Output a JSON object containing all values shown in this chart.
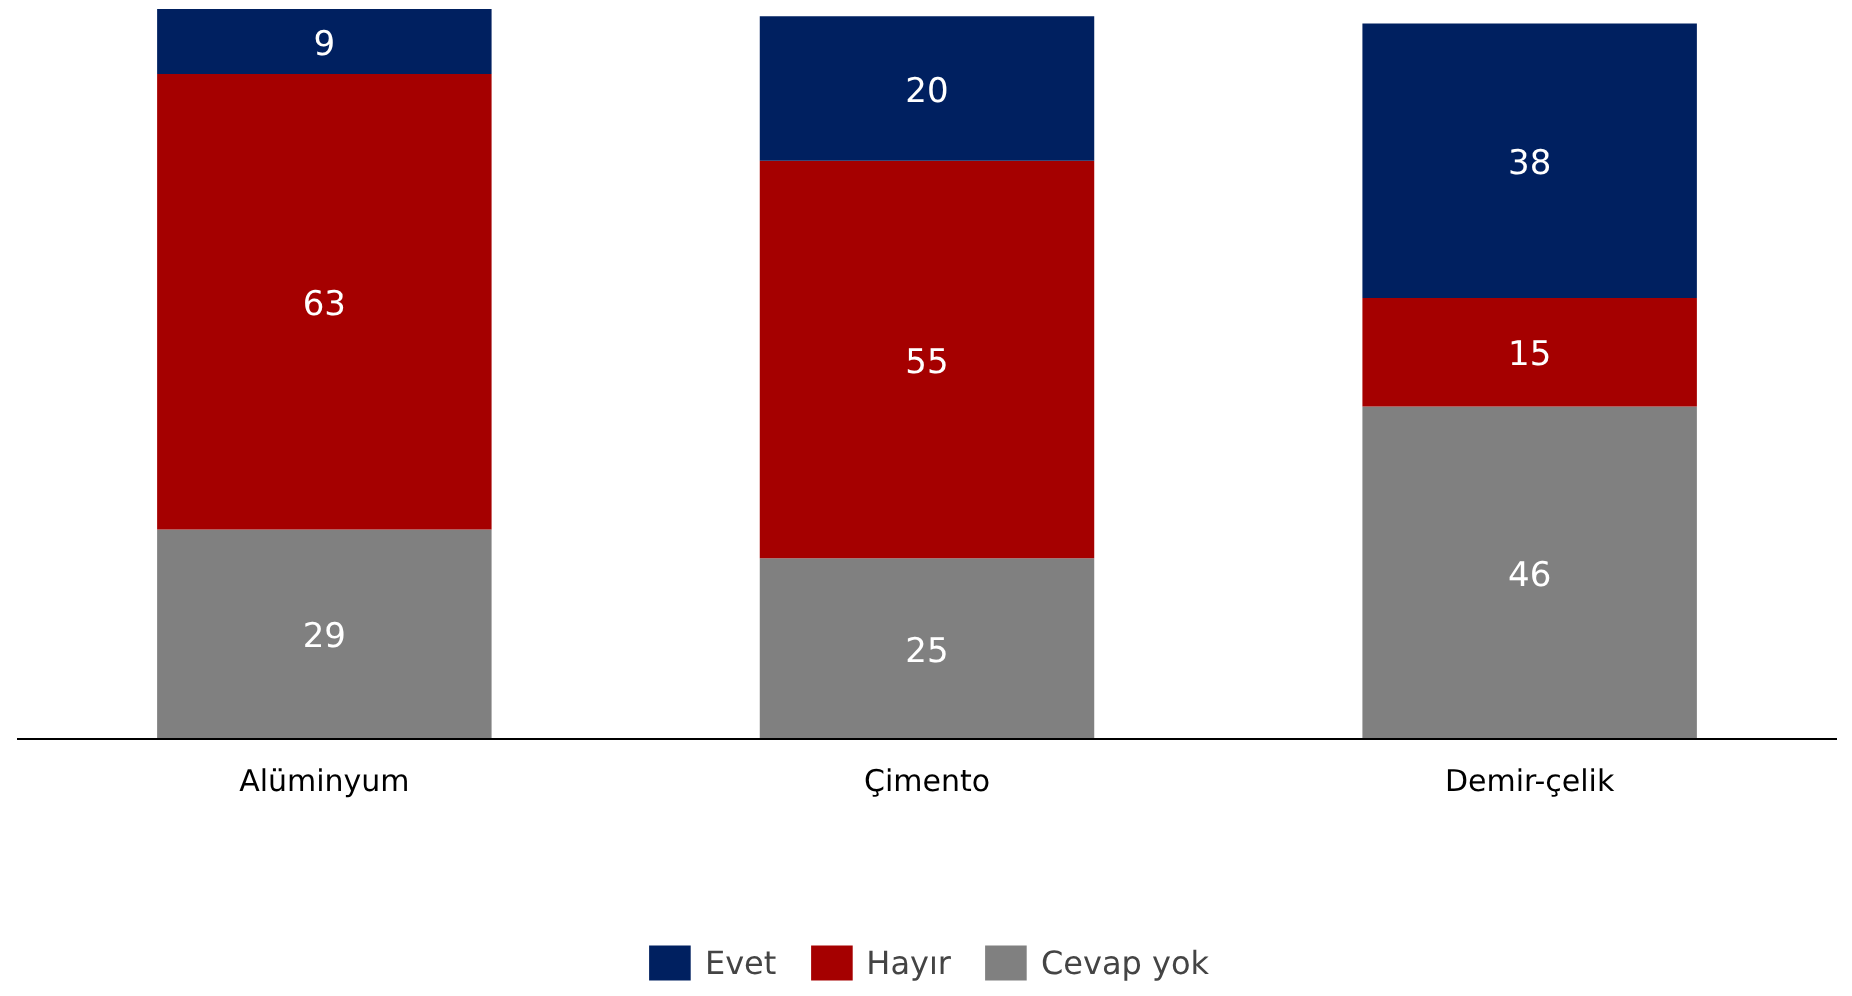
{
  "chart_data": {
    "type": "bar",
    "stacked": true,
    "categories": [
      "Alüminyum",
      "Çimento",
      "Demir-çelik"
    ],
    "series": [
      {
        "name": "Cevap yok",
        "color": "#808080",
        "values": [
          29,
          25,
          46
        ]
      },
      {
        "name": "Hayır",
        "color": "#a50000",
        "values": [
          63,
          55,
          15
        ]
      },
      {
        "name": "Evet",
        "color": "#002060",
        "values": [
          9,
          20,
          38
        ]
      }
    ],
    "data_labels": true,
    "legend": "bottom",
    "grid": false
  }
}
